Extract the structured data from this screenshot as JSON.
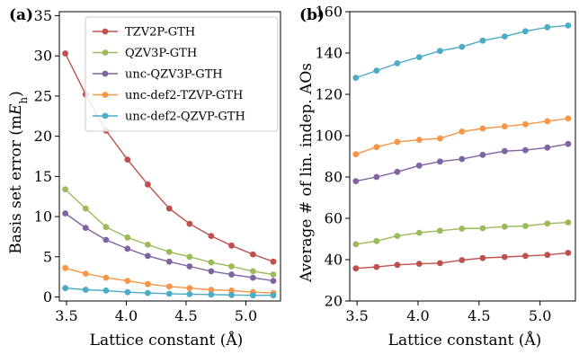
{
  "chart_data": [
    {
      "panel_label": "(a)",
      "type": "line",
      "xlabel": "Lattice constant (Å)",
      "ylabel": "Basis set error (mE_h)",
      "ylabel_parts": {
        "main": "Basis set error (m",
        "italic": "E",
        "sub": "h",
        "tail": ")"
      },
      "xlim": [
        3.44,
        5.29
      ],
      "ylim": [
        -0.5,
        35.5
      ],
      "xticks": [
        3.5,
        4.0,
        4.5,
        5.0
      ],
      "xtick_labels": [
        "3.5",
        "4.0",
        "4.5",
        "5.0"
      ],
      "yticks": [
        0,
        5,
        10,
        15,
        20,
        25,
        30,
        35
      ],
      "ytick_labels": [
        "0",
        "5",
        "10",
        "15",
        "20",
        "25",
        "30",
        "35"
      ],
      "grid": false,
      "legend_position": "top-right",
      "x": [
        3.49,
        3.66,
        3.83,
        4.01,
        4.18,
        4.36,
        4.53,
        4.71,
        4.88,
        5.06,
        5.23
      ],
      "series": [
        {
          "name": "TZV2P-GTH",
          "color": "#c0504d",
          "values": [
            30.3,
            25.2,
            20.7,
            17.1,
            14.0,
            11.0,
            9.1,
            7.6,
            6.4,
            5.3,
            4.4
          ]
        },
        {
          "name": "QZV3P-GTH",
          "color": "#9bbb59",
          "values": [
            13.4,
            11.0,
            8.7,
            7.4,
            6.5,
            5.6,
            5.0,
            4.3,
            3.8,
            3.2,
            2.8
          ]
        },
        {
          "name": "unc-QZV3P-GTH",
          "color": "#8064a2",
          "values": [
            10.4,
            8.6,
            7.1,
            6.0,
            5.1,
            4.4,
            3.8,
            3.2,
            2.8,
            2.4,
            2.0
          ]
        },
        {
          "name": "unc-def2-TZVP-GTH",
          "color": "#f79646",
          "values": [
            3.6,
            2.9,
            2.4,
            2.0,
            1.6,
            1.3,
            1.1,
            0.9,
            0.8,
            0.6,
            0.5
          ]
        },
        {
          "name": "unc-def2-QZVP-GTH",
          "color": "#4bacc6",
          "values": [
            1.1,
            0.9,
            0.8,
            0.6,
            0.5,
            0.4,
            0.35,
            0.3,
            0.25,
            0.2,
            0.2
          ]
        }
      ]
    },
    {
      "panel_label": "(b)",
      "type": "line",
      "xlabel": "Lattice constant (Å)",
      "ylabel": "Average # of lin. indep. AOs",
      "xlim": [
        3.44,
        5.29
      ],
      "ylim": [
        20,
        160
      ],
      "xticks": [
        3.5,
        4.0,
        4.5,
        5.0
      ],
      "xtick_labels": [
        "3.5",
        "4.0",
        "4.5",
        "5.0"
      ],
      "yticks": [
        20,
        40,
        60,
        80,
        100,
        120,
        140,
        160
      ],
      "ytick_labels": [
        "20",
        "40",
        "60",
        "80",
        "100",
        "120",
        "140",
        "160"
      ],
      "grid": false,
      "x": [
        3.49,
        3.66,
        3.83,
        4.01,
        4.18,
        4.36,
        4.53,
        4.71,
        4.88,
        5.06,
        5.23
      ],
      "series": [
        {
          "color": "#c0504d",
          "values": [
            35.8,
            36.5,
            37.5,
            38.0,
            38.3,
            39.8,
            40.8,
            41.3,
            41.8,
            42.3,
            43.3
          ]
        },
        {
          "color": "#9bbb59",
          "values": [
            47.5,
            49.0,
            51.5,
            53.0,
            54.0,
            55.0,
            55.2,
            56.0,
            56.3,
            57.5,
            58.0
          ]
        },
        {
          "color": "#8064a2",
          "values": [
            78.0,
            80.0,
            82.5,
            85.5,
            87.5,
            88.7,
            90.7,
            92.5,
            93.0,
            94.2,
            96.0
          ]
        },
        {
          "color": "#f79646",
          "values": [
            91.0,
            94.5,
            97.0,
            98.0,
            98.7,
            102.0,
            103.5,
            104.5,
            105.5,
            107.0,
            108.3
          ]
        },
        {
          "color": "#4bacc6",
          "values": [
            128.0,
            131.5,
            135.0,
            138.0,
            141.0,
            143.0,
            146.0,
            148.0,
            150.5,
            152.5,
            153.3
          ]
        }
      ]
    }
  ]
}
